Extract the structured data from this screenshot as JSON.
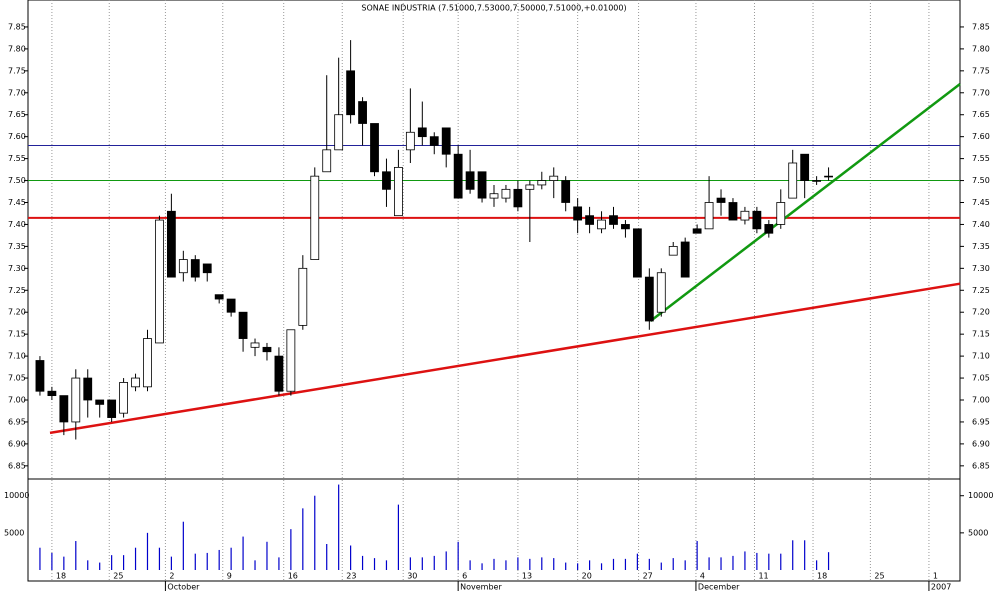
{
  "chart_data": {
    "type": "candlestick",
    "title": "SONAE INDUSTRIA (7.51000,7.53000,7.50000,7.51000,+0.01000)",
    "open": [
      7.09,
      7.02,
      7.01,
      6.95,
      7.05,
      7.0,
      7.0,
      6.97,
      7.03,
      7.03,
      7.13,
      7.43,
      7.29,
      7.32,
      7.31,
      7.24,
      7.23,
      7.2,
      7.12,
      7.12,
      7.1,
      7.02,
      7.17,
      7.32,
      7.52,
      7.57,
      7.75,
      7.68,
      7.63,
      7.52,
      7.42,
      7.57,
      7.62,
      7.6,
      7.62,
      7.56,
      7.52,
      7.52,
      7.46,
      7.46,
      7.48,
      7.48,
      7.49,
      7.5,
      7.5,
      7.44,
      7.42,
      7.39,
      7.42,
      7.4,
      7.39,
      7.28,
      7.2,
      7.33,
      7.36,
      7.39,
      7.39,
      7.46,
      7.45,
      7.41,
      7.43,
      7.4,
      7.4,
      7.46,
      7.56,
      7.5,
      7.51
    ],
    "high": [
      7.1,
      7.03,
      7.01,
      7.07,
      7.07,
      7.0,
      7.0,
      7.05,
      7.06,
      7.16,
      7.42,
      7.47,
      7.34,
      7.33,
      7.31,
      7.24,
      7.23,
      7.2,
      7.14,
      7.13,
      7.12,
      7.16,
      7.33,
      7.53,
      7.74,
      7.78,
      7.82,
      7.69,
      7.63,
      7.55,
      7.57,
      7.71,
      7.68,
      7.61,
      7.62,
      7.58,
      7.57,
      7.52,
      7.49,
      7.49,
      7.5,
      7.5,
      7.52,
      7.53,
      7.51,
      7.46,
      7.44,
      7.43,
      7.44,
      7.41,
      7.39,
      7.3,
      7.3,
      7.36,
      7.37,
      7.4,
      7.51,
      7.48,
      7.46,
      7.44,
      7.44,
      7.41,
      7.48,
      7.57,
      7.56,
      7.51,
      7.53
    ],
    "low": [
      7.01,
      7.0,
      6.92,
      6.91,
      6.96,
      6.96,
      6.95,
      6.96,
      7.02,
      7.02,
      7.13,
      7.28,
      7.27,
      7.27,
      7.27,
      7.22,
      7.19,
      7.11,
      7.1,
      7.09,
      7.01,
      7.01,
      7.16,
      7.32,
      7.52,
      7.57,
      7.63,
      7.58,
      7.51,
      7.44,
      7.42,
      7.54,
      7.58,
      7.56,
      7.53,
      7.46,
      7.47,
      7.45,
      7.44,
      7.45,
      7.43,
      7.36,
      7.48,
      7.46,
      7.43,
      7.38,
      7.38,
      7.38,
      7.39,
      7.37,
      7.28,
      7.16,
      7.19,
      7.33,
      7.28,
      7.38,
      7.39,
      7.42,
      7.41,
      7.4,
      7.38,
      7.37,
      7.39,
      7.46,
      7.46,
      7.49,
      7.5
    ],
    "close": [
      7.02,
      7.01,
      6.95,
      7.05,
      7.0,
      6.99,
      6.96,
      7.04,
      7.05,
      7.14,
      7.41,
      7.28,
      7.32,
      7.28,
      7.29,
      7.23,
      7.2,
      7.14,
      7.13,
      7.11,
      7.02,
      7.16,
      7.3,
      7.51,
      7.57,
      7.65,
      7.65,
      7.63,
      7.52,
      7.48,
      7.53,
      7.61,
      7.6,
      7.58,
      7.56,
      7.46,
      7.48,
      7.46,
      7.47,
      7.48,
      7.44,
      7.49,
      7.5,
      7.51,
      7.45,
      7.41,
      7.4,
      7.41,
      7.4,
      7.39,
      7.28,
      7.18,
      7.29,
      7.35,
      7.28,
      7.38,
      7.45,
      7.45,
      7.41,
      7.43,
      7.39,
      7.38,
      7.45,
      7.54,
      7.5,
      7.5,
      7.51
    ],
    "volume": [
      3000,
      2300,
      1800,
      3900,
      1300,
      1000,
      2000,
      2000,
      3000,
      5000,
      3000,
      1800,
      6500,
      2200,
      2300,
      2700,
      3000,
      4500,
      1300,
      3800,
      1700,
      5500,
      8300,
      10000,
      3500,
      11500,
      3300,
      1900,
      1600,
      1300,
      8800,
      1700,
      1700,
      1900,
      2500,
      3800,
      1300,
      900,
      1500,
      1300,
      1700,
      1500,
      1700,
      1600,
      1000,
      900,
      1300,
      900,
      1500,
      1500,
      2200,
      1500,
      1000,
      1600,
      1300,
      3900,
      1700,
      1700,
      1900,
      2500,
      2300,
      2200,
      2200,
      4000,
      4000,
      1300,
      2400
    ],
    "volume_color": "#0000cc",
    "xlim": [
      -1,
      77
    ],
    "xticks": [
      {
        "value": 1.0,
        "label": "18"
      },
      {
        "value": 5.8,
        "label": "25"
      },
      {
        "value": 10.5,
        "label": "2"
      },
      {
        "value": 15.3,
        "label": "9"
      },
      {
        "value": 20.4,
        "label": "16"
      },
      {
        "value": 25.3,
        "label": "23"
      },
      {
        "value": 30.4,
        "label": "30"
      },
      {
        "value": 35.0,
        "label": "6"
      },
      {
        "value": 40.0,
        "label": "13"
      },
      {
        "value": 45.0,
        "label": "20"
      },
      {
        "value": 50.1,
        "label": "27"
      },
      {
        "value": 54.9,
        "label": "4"
      },
      {
        "value": 59.8,
        "label": "11"
      },
      {
        "value": 64.7,
        "label": "18"
      },
      {
        "value": 69.5,
        "label": "25"
      },
      {
        "value": 74.4,
        "label": "1"
      }
    ],
    "month_ticks": [
      {
        "value": 10.5,
        "label": "October"
      },
      {
        "value": 35.0,
        "label": "November"
      },
      {
        "value": 54.9,
        "label": "December"
      },
      {
        "value": 74.4,
        "label": "2007"
      }
    ],
    "ylim": [
      6.82,
      7.9
    ],
    "yticks": [
      6.85,
      {
        "value": 6.9,
        "label": "6.90"
      },
      6.95,
      {
        "value": 7.0,
        "label": "7.00"
      },
      7.05,
      {
        "value": 7.1,
        "label": "7.10"
      },
      7.15,
      {
        "value": 7.2,
        "label": "7.20"
      },
      7.25,
      {
        "value": 7.3,
        "label": "7.30"
      },
      7.35,
      {
        "value": 7.4,
        "label": "7.40"
      },
      7.45,
      {
        "value": 7.5,
        "label": "7.50"
      },
      7.55,
      {
        "value": 7.6,
        "label": "7.60"
      },
      7.65,
      {
        "value": 7.7,
        "label": "7.70"
      },
      7.75,
      {
        "value": 7.8,
        "label": "7.80"
      },
      7.85
    ],
    "vlim": [
      0,
      12250
    ],
    "vticks": [
      5000,
      10000
    ],
    "hlines": [
      {
        "value": 7.58,
        "color": "#22229a",
        "width": 1
      },
      {
        "value": 7.5,
        "color": "#119911",
        "width": 1
      },
      {
        "value": 7.415,
        "color": "#dd1111",
        "width": 2
      }
    ],
    "trendlines": [
      {
        "x": [
          0.84,
          77
        ],
        "y": [
          6.925,
          7.265
        ],
        "color": "#dd1111"
      },
      {
        "x": [
          51.1,
          77
        ],
        "y": [
          7.18,
          7.72
        ],
        "color": "#119911"
      }
    ]
  }
}
